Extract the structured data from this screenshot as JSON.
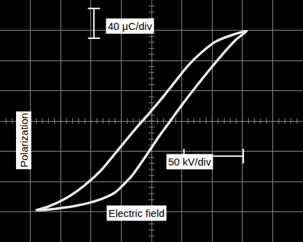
{
  "chart_data": {
    "type": "line",
    "xlabel": "Electric field",
    "ylabel": "Polarization",
    "annotations": [
      "40 μC/div",
      "50 kV/div"
    ],
    "x": [
      157,
      134,
      106,
      83,
      60,
      37,
      14,
      -3,
      -26,
      -55,
      -83,
      -112,
      -141,
      -170,
      -190,
      -158,
      -124,
      -89,
      -61,
      -32,
      -9,
      11,
      31,
      50,
      71,
      94,
      117,
      140,
      157
    ],
    "values": [
      119,
      114,
      105,
      91,
      73,
      50,
      27,
      11,
      -10,
      -38,
      -65,
      -86,
      -102,
      -113,
      -118,
      -116,
      -112,
      -105,
      -95,
      -72,
      -46,
      -22,
      0,
      21,
      43,
      66,
      88,
      108,
      119
    ],
    "color": "#ececec",
    "xlim": [
      -250,
      250
    ],
    "ylim": [
      -160,
      160
    ],
    "xticks": [
      -250,
      -200,
      -150,
      -100,
      -50,
      0,
      50,
      100,
      150,
      200,
      250
    ],
    "yticks": [
      -160,
      -120,
      -80,
      -40,
      0,
      40,
      80,
      120,
      160
    ],
    "grid": true,
    "tick_labels": false
  }
}
